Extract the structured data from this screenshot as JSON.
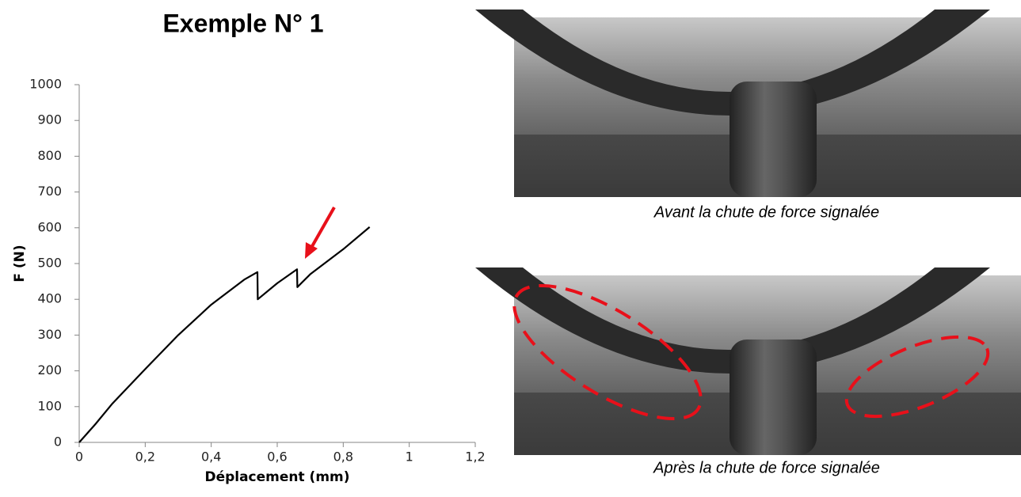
{
  "chart_data": {
    "type": "line",
    "title": "Exemple N° 1",
    "x_label": "Déplacement (mm)",
    "y_label": "F (N)",
    "x": [
      0,
      0.05,
      0.1,
      0.2,
      0.3,
      0.4,
      0.5,
      0.54,
      0.541,
      0.6,
      0.66,
      0.661,
      0.7,
      0.8,
      0.88
    ],
    "values": [
      0,
      52,
      108,
      205,
      300,
      385,
      455,
      476,
      400,
      445,
      484,
      434,
      470,
      540,
      602
    ],
    "color": "#000000",
    "xlim": [
      0,
      1.2
    ],
    "xticks": [
      0,
      {
        "value": 0.2,
        "label": "0,2"
      },
      {
        "value": 0.4,
        "label": "0,4"
      },
      {
        "value": 0.6,
        "label": "0,6"
      },
      {
        "value": 0.8,
        "label": "0,8"
      },
      1,
      {
        "value": 1.2,
        "label": "1,2"
      }
    ],
    "ylim": [
      0,
      1000
    ],
    "yticks": [
      0,
      100,
      200,
      300,
      400,
      500,
      600,
      700,
      800,
      900,
      1000
    ],
    "grid": false
  },
  "images": [
    {
      "caption": "Avant la chute de force signalée"
    },
    {
      "caption": "Après la chute de force signalée"
    }
  ]
}
